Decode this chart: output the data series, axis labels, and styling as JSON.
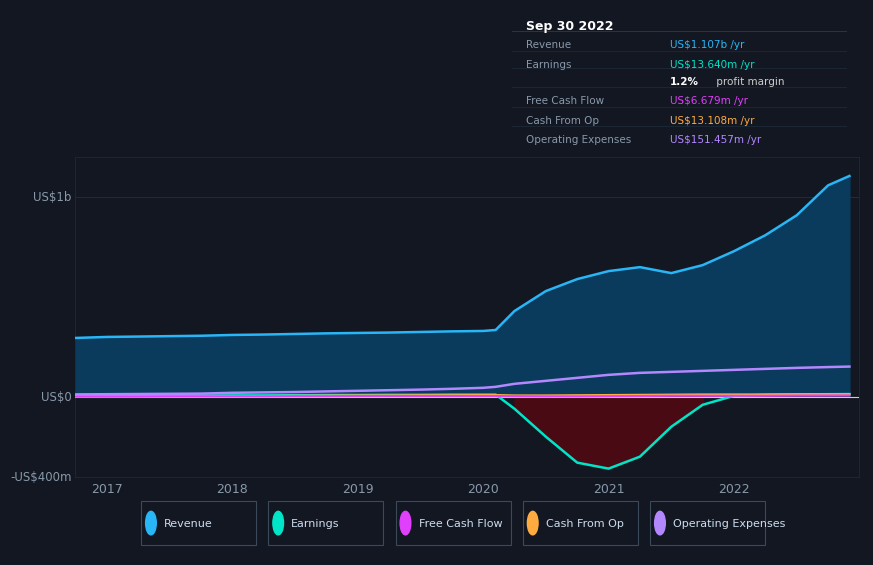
{
  "bg_color": "#131722",
  "plot_bg_color": "#131722",
  "grid_color": "#1e2d3d",
  "years": [
    2016.75,
    2017.0,
    2017.25,
    2017.5,
    2017.75,
    2018.0,
    2018.25,
    2018.5,
    2018.75,
    2019.0,
    2019.25,
    2019.5,
    2019.75,
    2020.0,
    2020.1,
    2020.25,
    2020.5,
    2020.75,
    2021.0,
    2021.25,
    2021.5,
    2021.75,
    2022.0,
    2022.25,
    2022.5,
    2022.75,
    2022.92
  ],
  "revenue": [
    295,
    300,
    302,
    304,
    306,
    310,
    312,
    315,
    318,
    320,
    322,
    325,
    328,
    330,
    335,
    430,
    530,
    590,
    630,
    650,
    620,
    660,
    730,
    810,
    910,
    1060,
    1107
  ],
  "earnings": [
    5,
    5,
    5,
    6,
    6,
    7,
    7,
    8,
    9,
    9,
    10,
    10,
    11,
    11,
    11,
    -60,
    -200,
    -330,
    -360,
    -300,
    -150,
    -40,
    5,
    10,
    12,
    13,
    13.64
  ],
  "free_cash_flow": [
    1,
    1,
    1,
    2,
    2,
    2,
    2,
    3,
    3,
    4,
    4,
    4,
    4,
    4,
    4,
    3,
    2,
    2,
    3,
    4,
    5,
    5,
    5,
    5,
    6,
    6.5,
    6.679
  ],
  "cash_from_op": [
    2,
    2,
    2,
    3,
    3,
    4,
    4,
    5,
    6,
    7,
    7,
    8,
    8,
    9,
    9,
    7,
    7,
    8,
    9,
    10,
    11,
    12,
    12,
    12,
    13,
    13,
    13.108
  ],
  "operating_expenses": [
    12,
    13,
    14,
    15,
    16,
    20,
    22,
    24,
    27,
    30,
    33,
    36,
    40,
    45,
    50,
    65,
    80,
    95,
    110,
    120,
    125,
    130,
    135,
    140,
    145,
    149,
    151.457
  ],
  "ylim": [
    -400,
    1200
  ],
  "xlim": [
    2016.75,
    2023.0
  ],
  "ytick_positions": [
    -400,
    0,
    1000
  ],
  "ytick_labels": [
    "-US$400m",
    "US$0",
    "US$1b"
  ],
  "xticks": [
    2017,
    2018,
    2019,
    2020,
    2021,
    2022
  ],
  "revenue_color": "#29b6f6",
  "revenue_fill_color": "#0a3a5c",
  "earnings_color": "#00e5c8",
  "earnings_fill_color": "#4a0a14",
  "free_cash_flow_color": "#e040fb",
  "cash_from_op_color": "#ffab40",
  "operating_expenses_color": "#b388ff",
  "zero_line_color": "#c8d0d8",
  "legend": [
    {
      "label": "Revenue",
      "color": "#29b6f6"
    },
    {
      "label": "Earnings",
      "color": "#00e5c8"
    },
    {
      "label": "Free Cash Flow",
      "color": "#e040fb"
    },
    {
      "label": "Cash From Op",
      "color": "#ffab40"
    },
    {
      "label": "Operating Expenses",
      "color": "#b388ff"
    }
  ],
  "infobox": {
    "date": "Sep 30 2022",
    "rows": [
      {
        "label": "Revenue",
        "value": "US$1.107b /yr",
        "vcolor": "#29b6f6"
      },
      {
        "label": "Earnings",
        "value": "US$13.640m /yr",
        "vcolor": "#00e5c8"
      },
      {
        "label": "",
        "value": "1.2%",
        "vcolor": "#ffffff",
        "suffix": " profit margin",
        "suffix_color": "#cccccc"
      },
      {
        "label": "Free Cash Flow",
        "value": "US$6.679m /yr",
        "vcolor": "#e040fb"
      },
      {
        "label": "Cash From Op",
        "value": "US$13.108m /yr",
        "vcolor": "#ffab40"
      },
      {
        "label": "Operating Expenses",
        "value": "US$151.457m /yr",
        "vcolor": "#b388ff"
      }
    ]
  }
}
